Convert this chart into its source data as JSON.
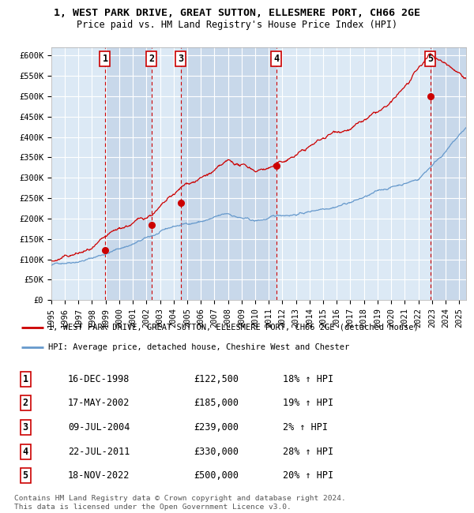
{
  "title": "1, WEST PARK DRIVE, GREAT SUTTON, ELLESMERE PORT, CH66 2GE",
  "subtitle": "Price paid vs. HM Land Registry's House Price Index (HPI)",
  "ylim": [
    0,
    620000
  ],
  "yticks": [
    0,
    50000,
    100000,
    150000,
    200000,
    250000,
    300000,
    350000,
    400000,
    450000,
    500000,
    550000,
    600000
  ],
  "ytick_labels": [
    "£0",
    "£50K",
    "£100K",
    "£150K",
    "£200K",
    "£250K",
    "£300K",
    "£350K",
    "£400K",
    "£450K",
    "£500K",
    "£550K",
    "£600K"
  ],
  "xlim_start": 1995.0,
  "xlim_end": 2025.5,
  "background_color": "#dce9f5",
  "grid_color": "#ffffff",
  "hpi_line_color": "#6699cc",
  "price_line_color": "#cc0000",
  "sale_marker_color": "#cc0000",
  "vline_color": "#cc0000",
  "sale_dates_year": [
    1998.96,
    2002.37,
    2004.52,
    2011.55,
    2022.88
  ],
  "sale_prices": [
    122500,
    185000,
    239000,
    330000,
    500000
  ],
  "sale_labels": [
    "1",
    "2",
    "3",
    "4",
    "5"
  ],
  "legend_line1": "1, WEST PARK DRIVE, GREAT SUTTON, ELLESMERE PORT, CH66 2GE (detached house)",
  "legend_line2": "HPI: Average price, detached house, Cheshire West and Chester",
  "table_rows": [
    [
      "1",
      "16-DEC-1998",
      "£122,500",
      "18% ↑ HPI"
    ],
    [
      "2",
      "17-MAY-2002",
      "£185,000",
      "19% ↑ HPI"
    ],
    [
      "3",
      "09-JUL-2004",
      "£239,000",
      "2% ↑ HPI"
    ],
    [
      "4",
      "22-JUL-2011",
      "£330,000",
      "28% ↑ HPI"
    ],
    [
      "5",
      "18-NOV-2022",
      "£500,000",
      "20% ↑ HPI"
    ]
  ],
  "footnote": "Contains HM Land Registry data © Crown copyright and database right 2024.\nThis data is licensed under the Open Government Licence v3.0.",
  "shade_colors": [
    "#dce9f5",
    "#c8d8ea",
    "#dce9f5",
    "#c8d8ea",
    "#dce9f5"
  ]
}
